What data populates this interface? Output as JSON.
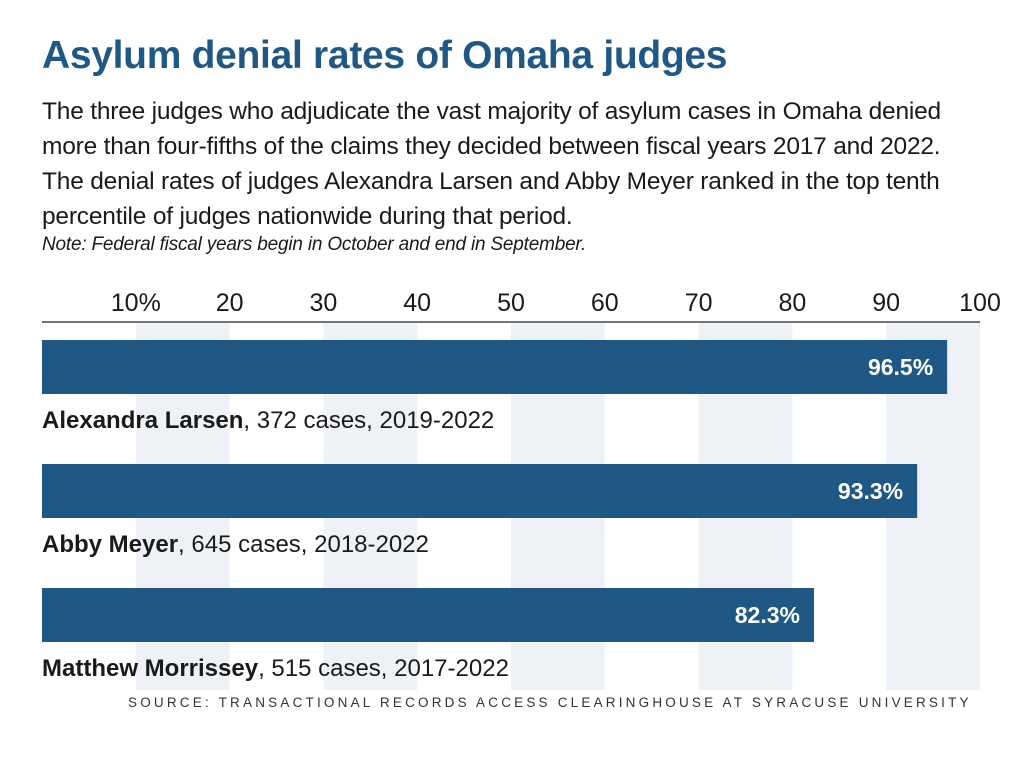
{
  "title": "Asylum denial rates of Omaha judges",
  "subtitle": "The three judges who adjudicate the vast majority of asylum cases in Omaha denied more than four-fifths of the claims they decided between fiscal years 2017 and 2022. The denial rates of judges Alexandra Larsen and Abby Meyer ranked in the top tenth percentile of judges nationwide during that period.",
  "note": "Note: Federal fiscal years begin in October and end in September.",
  "source": "SOURCE: TRANSACTIONAL RECORDS ACCESS CLEARINGHOUSE AT SYRACUSE UNIVERSITY",
  "colors": {
    "title": "#1f5885",
    "bar": "#1f5885",
    "grid_band": "#eef2f7"
  },
  "chart_data": {
    "type": "bar",
    "orientation": "horizontal",
    "xlim": [
      0,
      100
    ],
    "x_ticks": [
      "10%",
      "20",
      "30",
      "40",
      "50",
      "60",
      "70",
      "80",
      "90",
      "100"
    ],
    "x_tick_values": [
      10,
      20,
      30,
      40,
      50,
      60,
      70,
      80,
      90,
      100
    ],
    "grid": true,
    "tick_position": "top",
    "categories": [
      "Alexandra Larsen",
      "Abby Meyer",
      "Matthew Morrissey"
    ],
    "values": [
      96.5,
      93.3,
      82.3
    ],
    "value_labels": [
      "96.5%",
      "93.3%",
      "82.3%"
    ],
    "details": [
      ", 372 cases, 2019-2022",
      ", 645 cases, 2018-2022",
      ", 515 cases, 2017-2022"
    ]
  }
}
